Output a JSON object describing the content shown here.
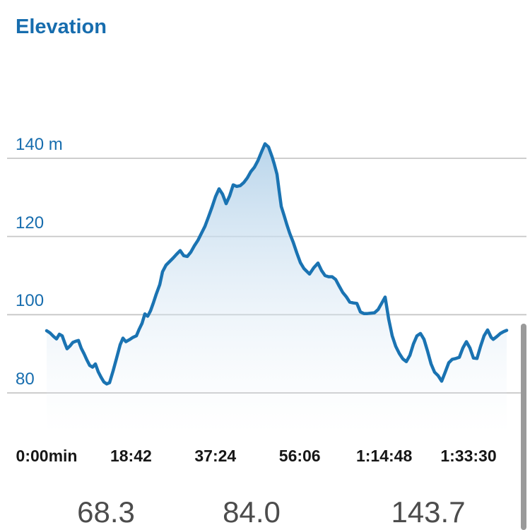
{
  "title": "Elevation",
  "colors": {
    "accent": "#176dae",
    "line": "#1a73b2",
    "fill_top": "#b9d5eb",
    "fill_bottom": "#eaf2f9",
    "grid": "#c7c7c7",
    "x_label": "#161616",
    "stat_value": "#4c4c4c",
    "scrollbar": "#9a9a9a"
  },
  "stats": [
    "68.3",
    "84.0",
    "143.7"
  ],
  "chart_data": {
    "type": "area",
    "title": "Elevation",
    "series_name": "Elevation (m)",
    "unit": "m",
    "ylim": [
      70,
      144
    ],
    "grid": "on",
    "legend": "none",
    "y_ticks": [
      {
        "value": 140,
        "label": "140 m"
      },
      {
        "value": 120,
        "label": "120"
      },
      {
        "value": 100,
        "label": "100"
      },
      {
        "value": 80,
        "label": "80"
      }
    ],
    "x_tick_interval_s": 1122,
    "x_ticks": [
      {
        "seconds": 0,
        "label": "0:00min"
      },
      {
        "seconds": 1122,
        "label": "18:42"
      },
      {
        "seconds": 2244,
        "label": "37:24"
      },
      {
        "seconds": 3366,
        "label": "56:06"
      },
      {
        "seconds": 4488,
        "label": "1:14:48"
      },
      {
        "seconds": 5610,
        "label": "1:33:30"
      }
    ],
    "total_seconds": 6117,
    "points": [
      [
        0,
        95.9
      ],
      [
        47,
        95.3
      ],
      [
        94,
        94.4
      ],
      [
        132,
        93.8
      ],
      [
        169,
        95.0
      ],
      [
        207,
        94.6
      ],
      [
        244,
        92.6
      ],
      [
        272,
        91.3
      ],
      [
        310,
        92.0
      ],
      [
        348,
        92.9
      ],
      [
        385,
        93.2
      ],
      [
        423,
        93.4
      ],
      [
        460,
        91.4
      ],
      [
        498,
        90.0
      ],
      [
        536,
        88.4
      ],
      [
        573,
        87.0
      ],
      [
        611,
        86.6
      ],
      [
        648,
        87.4
      ],
      [
        686,
        85.4
      ],
      [
        724,
        84.0
      ],
      [
        761,
        82.8
      ],
      [
        799,
        82.3
      ],
      [
        836,
        82.6
      ],
      [
        883,
        85.6
      ],
      [
        930,
        88.9
      ],
      [
        977,
        92.3
      ],
      [
        1015,
        94.0
      ],
      [
        1053,
        93.1
      ],
      [
        1100,
        93.6
      ],
      [
        1147,
        94.2
      ],
      [
        1193,
        94.6
      ],
      [
        1231,
        96.3
      ],
      [
        1269,
        97.8
      ],
      [
        1306,
        100.2
      ],
      [
        1344,
        99.6
      ],
      [
        1381,
        101.0
      ],
      [
        1419,
        103.0
      ],
      [
        1457,
        105.2
      ],
      [
        1504,
        107.7
      ],
      [
        1541,
        111.0
      ],
      [
        1588,
        112.7
      ],
      [
        1635,
        113.6
      ],
      [
        1682,
        114.5
      ],
      [
        1729,
        115.5
      ],
      [
        1776,
        116.4
      ],
      [
        1823,
        115.1
      ],
      [
        1870,
        114.9
      ],
      [
        1917,
        116.0
      ],
      [
        1964,
        117.6
      ],
      [
        2011,
        119.0
      ],
      [
        2058,
        120.8
      ],
      [
        2105,
        122.6
      ],
      [
        2152,
        125.0
      ],
      [
        2199,
        127.5
      ],
      [
        2246,
        130.2
      ],
      [
        2293,
        132.2
      ],
      [
        2340,
        130.8
      ],
      [
        2387,
        128.4
      ],
      [
        2434,
        130.4
      ],
      [
        2481,
        133.2
      ],
      [
        2528,
        132.8
      ],
      [
        2575,
        133.0
      ],
      [
        2622,
        133.8
      ],
      [
        2669,
        135.0
      ],
      [
        2716,
        136.6
      ],
      [
        2763,
        137.7
      ],
      [
        2810,
        139.4
      ],
      [
        2857,
        141.6
      ],
      [
        2904,
        143.7
      ],
      [
        2951,
        142.9
      ],
      [
        2998,
        140.4
      ],
      [
        3026,
        138.6
      ],
      [
        3063,
        135.9
      ],
      [
        3092,
        131.7
      ],
      [
        3120,
        127.7
      ],
      [
        3157,
        125.4
      ],
      [
        3195,
        123.0
      ],
      [
        3233,
        120.8
      ],
      [
        3280,
        118.5
      ],
      [
        3327,
        115.8
      ],
      [
        3374,
        113.3
      ],
      [
        3421,
        111.8
      ],
      [
        3496,
        110.4
      ],
      [
        3552,
        112.0
      ],
      [
        3608,
        113.2
      ],
      [
        3655,
        111.3
      ],
      [
        3702,
        110.0
      ],
      [
        3749,
        109.7
      ],
      [
        3796,
        109.7
      ],
      [
        3843,
        109.0
      ],
      [
        3890,
        107.3
      ],
      [
        3937,
        105.7
      ],
      [
        3984,
        104.6
      ],
      [
        4031,
        103.2
      ],
      [
        4078,
        103.0
      ],
      [
        4125,
        102.9
      ],
      [
        4172,
        100.7
      ],
      [
        4219,
        100.3
      ],
      [
        4266,
        100.3
      ],
      [
        4313,
        100.4
      ],
      [
        4360,
        100.5
      ],
      [
        4407,
        101.3
      ],
      [
        4454,
        102.9
      ],
      [
        4501,
        104.5
      ],
      [
        4548,
        98.9
      ],
      [
        4595,
        94.6
      ],
      [
        4642,
        91.9
      ],
      [
        4689,
        90.1
      ],
      [
        4736,
        88.7
      ],
      [
        4783,
        88.0
      ],
      [
        4830,
        89.6
      ],
      [
        4877,
        92.5
      ],
      [
        4924,
        94.6
      ],
      [
        4971,
        95.2
      ],
      [
        5018,
        93.7
      ],
      [
        5065,
        90.7
      ],
      [
        5112,
        87.4
      ],
      [
        5159,
        85.3
      ],
      [
        5206,
        84.4
      ],
      [
        5253,
        83.0
      ],
      [
        5300,
        85.3
      ],
      [
        5347,
        87.7
      ],
      [
        5394,
        88.6
      ],
      [
        5441,
        88.8
      ],
      [
        5488,
        89.1
      ],
      [
        5535,
        91.5
      ],
      [
        5582,
        93.1
      ],
      [
        5629,
        91.5
      ],
      [
        5676,
        88.9
      ],
      [
        5723,
        88.8
      ],
      [
        5770,
        91.9
      ],
      [
        5817,
        94.6
      ],
      [
        5864,
        96.1
      ],
      [
        5911,
        94.2
      ],
      [
        5939,
        93.7
      ],
      [
        5986,
        94.4
      ],
      [
        6033,
        95.2
      ],
      [
        6080,
        95.7
      ],
      [
        6117,
        96.0
      ]
    ]
  }
}
